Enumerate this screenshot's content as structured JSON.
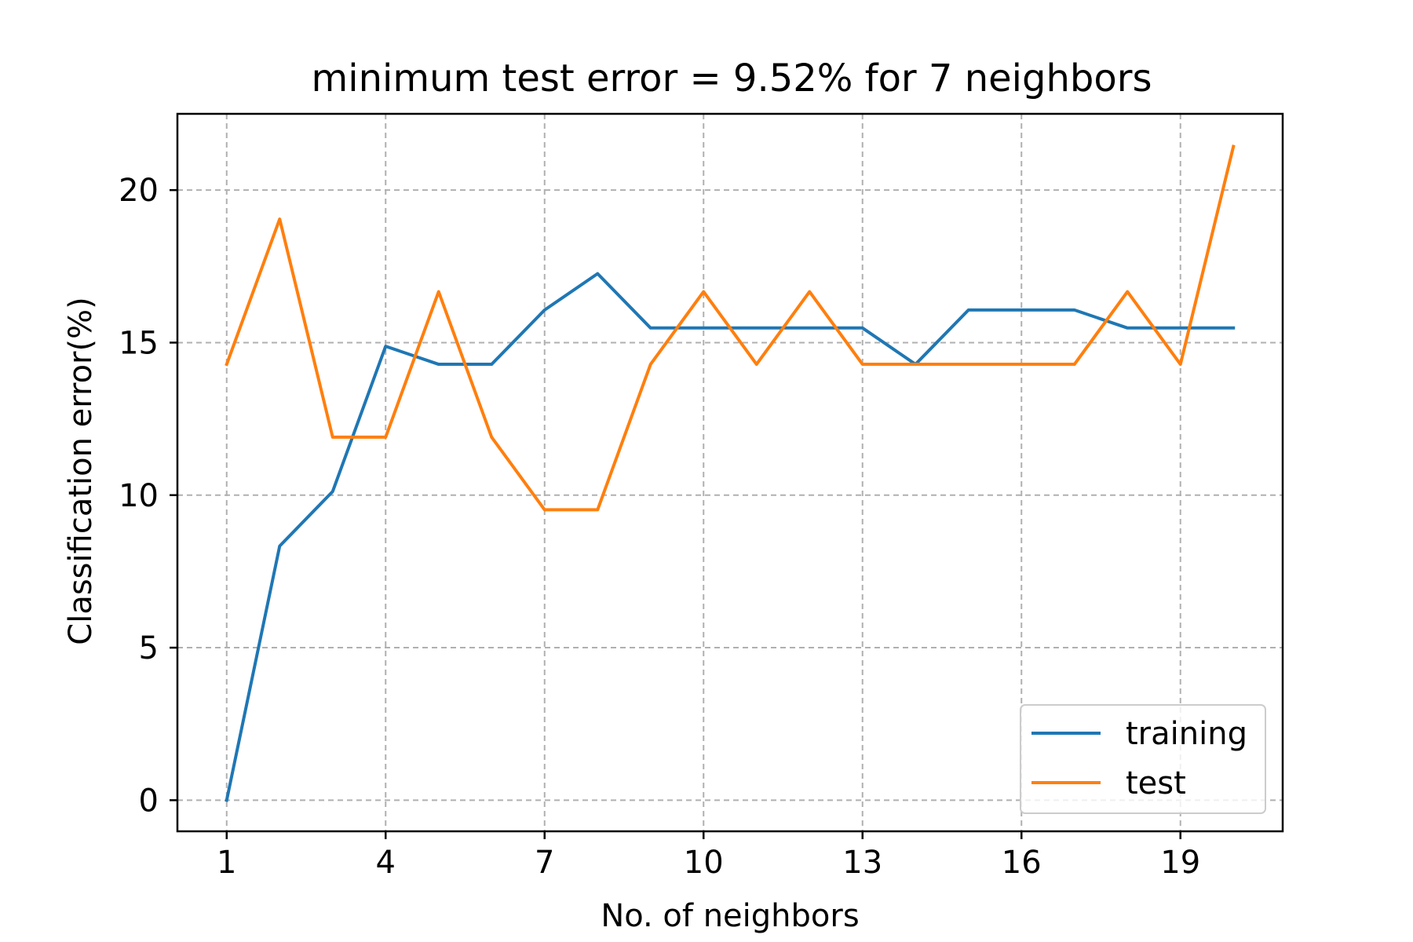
{
  "chart_data": {
    "type": "line",
    "title": "minimum test error = 9.52% for 7 neighbors",
    "xlabel": "No. of neighbors",
    "ylabel": "Classification error(%)",
    "x": [
      1,
      2,
      3,
      4,
      5,
      6,
      7,
      8,
      9,
      10,
      11,
      12,
      13,
      14,
      15,
      16,
      17,
      18,
      19,
      20
    ],
    "xlim": [
      0.07,
      20.93
    ],
    "ylim": [
      -1.02,
      22.5
    ],
    "xticks": [
      1,
      4,
      7,
      10,
      13,
      16,
      19
    ],
    "xtick_labels": [
      "1",
      "4",
      "7",
      "10",
      "13",
      "16",
      "19"
    ],
    "yticks": [
      0,
      5,
      10,
      15,
      20
    ],
    "ytick_labels": [
      "0",
      "5",
      "10",
      "15",
      "20"
    ],
    "grid": true,
    "legend_position": "lower-right",
    "series": [
      {
        "name": "training",
        "color": "#1f77b4",
        "values": [
          0.0,
          8.33,
          10.12,
          14.88,
          14.29,
          14.29,
          16.07,
          17.26,
          15.48,
          15.48,
          15.48,
          15.48,
          15.48,
          14.29,
          16.07,
          16.07,
          16.07,
          15.48,
          15.48,
          15.48
        ]
      },
      {
        "name": "test",
        "color": "#ff7f0e",
        "values": [
          14.29,
          19.05,
          11.9,
          11.9,
          16.67,
          11.9,
          9.52,
          9.52,
          14.29,
          16.67,
          14.29,
          16.67,
          14.29,
          14.29,
          14.29,
          14.29,
          14.29,
          16.67,
          14.29,
          21.43
        ]
      }
    ]
  }
}
